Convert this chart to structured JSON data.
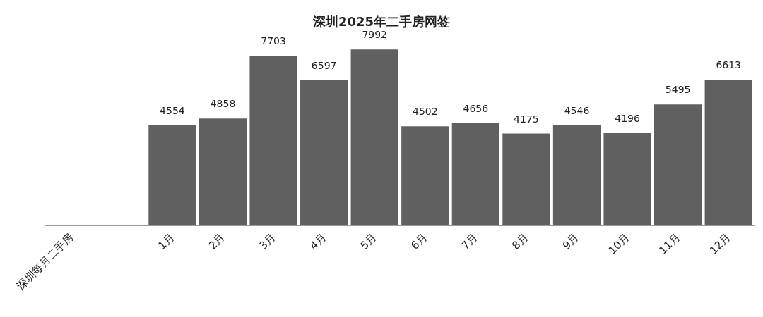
{
  "chart_data": {
    "type": "bar",
    "title": "深圳2025年二手房网签",
    "categories": [
      "深圳每月二手房",
      null,
      "1月",
      "2月",
      "3月",
      "4月",
      "5月",
      "6月",
      "7月",
      "8月",
      "9月",
      "10月",
      "11月",
      "12月"
    ],
    "values": [
      null,
      null,
      4554,
      4858,
      7703,
      6597,
      7992,
      4502,
      4656,
      4175,
      4546,
      4196,
      5495,
      6613
    ],
    "color": "#606060",
    "data_labels": true
  }
}
